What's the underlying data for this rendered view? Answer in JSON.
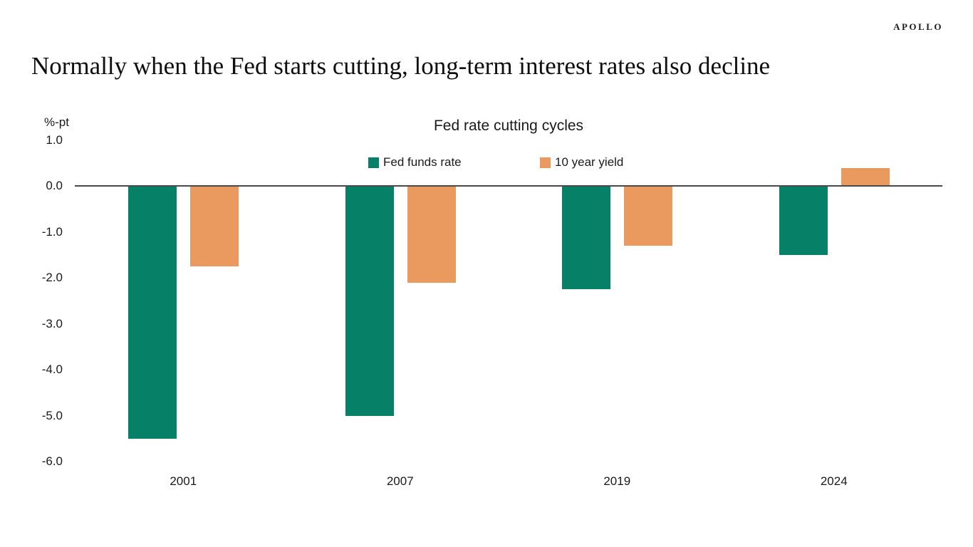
{
  "header": {
    "logo": "APOLLO",
    "title": "Normally when the Fed starts cutting, long-term interest rates also decline"
  },
  "chart_data": {
    "type": "bar",
    "title": "Fed rate cutting cycles",
    "unit_label": "%-pt",
    "categories": [
      "2001",
      "2007",
      "2019",
      "2024"
    ],
    "series": [
      {
        "name": "Fed funds rate",
        "color": "#068067",
        "values": [
          -5.5,
          -5.0,
          -2.25,
          -1.5
        ]
      },
      {
        "name": "10 year yield",
        "color": "#EA9A5F",
        "values": [
          -1.75,
          -2.1,
          -1.3,
          0.4
        ]
      }
    ],
    "ylim": [
      -6.0,
      1.0
    ],
    "y_ticks": [
      1.0,
      0.0,
      -1.0,
      -2.0,
      -3.0,
      -4.0,
      -5.0,
      -6.0
    ],
    "tick_decimals": 1,
    "grid": false,
    "legend_position": "top-center",
    "axis_color": "#4A4A4A",
    "background_color": "#FFFFFF"
  }
}
